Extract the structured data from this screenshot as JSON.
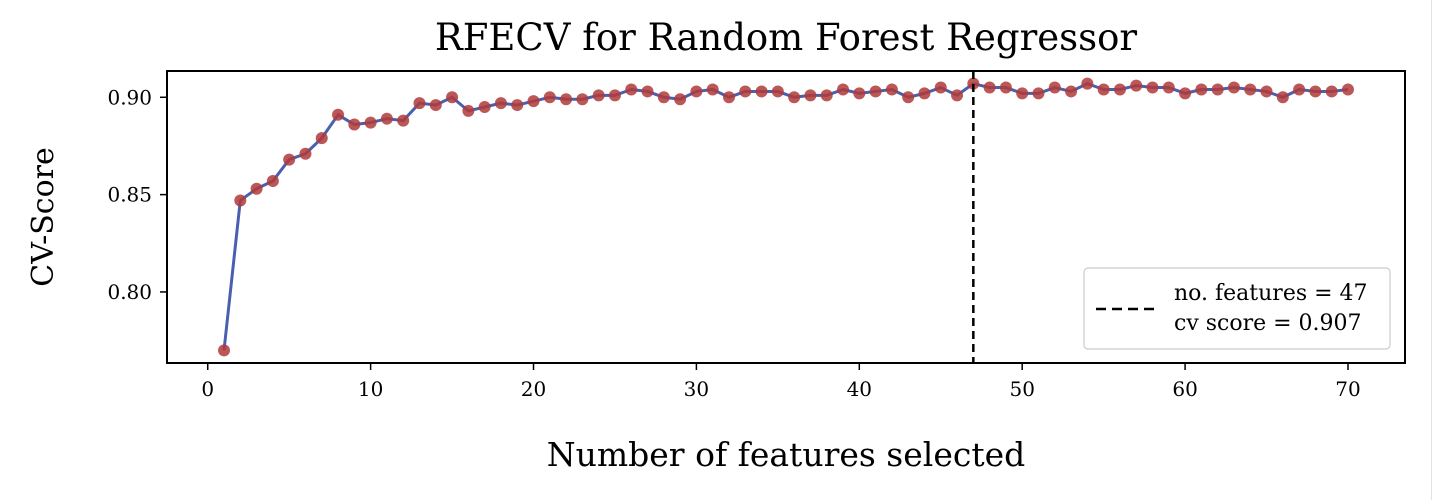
{
  "chart_data": {
    "type": "line",
    "title": "RFECV for Random Forest Regressor",
    "xlabel": "Number of features selected",
    "ylabel": "CV-Score",
    "xlim": [
      -2.5,
      73.5
    ],
    "ylim": [
      0.7635,
      0.9135
    ],
    "xticks": [
      0,
      10,
      20,
      30,
      40,
      50,
      60,
      70
    ],
    "yticks": [
      0.8,
      0.85,
      0.9
    ],
    "ytick_labels": [
      "0.80",
      "0.85",
      "0.90"
    ],
    "grid": false,
    "line_color": "#4a5fb0",
    "marker_color": "#b03a3a",
    "series": [
      {
        "x": [
          1,
          2,
          3,
          4,
          5,
          6,
          7,
          8,
          9,
          10,
          11,
          12,
          13,
          14,
          15,
          16,
          17,
          18,
          19,
          20,
          21,
          22,
          23,
          24,
          25,
          26,
          27,
          28,
          29,
          30,
          31,
          32,
          33,
          34,
          35,
          36,
          37,
          38,
          39,
          40,
          41,
          42,
          43,
          44,
          45,
          46,
          47,
          48,
          49,
          50,
          51,
          52,
          53,
          54,
          55,
          56,
          57,
          58,
          59,
          60,
          61,
          62,
          63,
          64,
          65,
          66,
          67,
          68,
          69,
          70
        ],
        "y": [
          0.77,
          0.847,
          0.853,
          0.857,
          0.868,
          0.871,
          0.879,
          0.891,
          0.886,
          0.887,
          0.889,
          0.888,
          0.897,
          0.896,
          0.9,
          0.893,
          0.895,
          0.897,
          0.896,
          0.898,
          0.9,
          0.899,
          0.899,
          0.901,
          0.901,
          0.904,
          0.903,
          0.9,
          0.899,
          0.903,
          0.904,
          0.9,
          0.903,
          0.903,
          0.903,
          0.9,
          0.901,
          0.901,
          0.904,
          0.902,
          0.903,
          0.904,
          0.9,
          0.902,
          0.905,
          0.901,
          0.907,
          0.905,
          0.905,
          0.902,
          0.902,
          0.905,
          0.903,
          0.907,
          0.904,
          0.904,
          0.906,
          0.905,
          0.905,
          0.902,
          0.904,
          0.904,
          0.905,
          0.904,
          0.903,
          0.9,
          0.904,
          0.903,
          0.903,
          0.904
        ]
      }
    ],
    "optimal_line": {
      "x": 47,
      "style": "dashed",
      "color": "#000000"
    },
    "legend": {
      "position": "lower-right",
      "entries": [
        "no. features = 47",
        "cv score = 0.907"
      ]
    }
  }
}
